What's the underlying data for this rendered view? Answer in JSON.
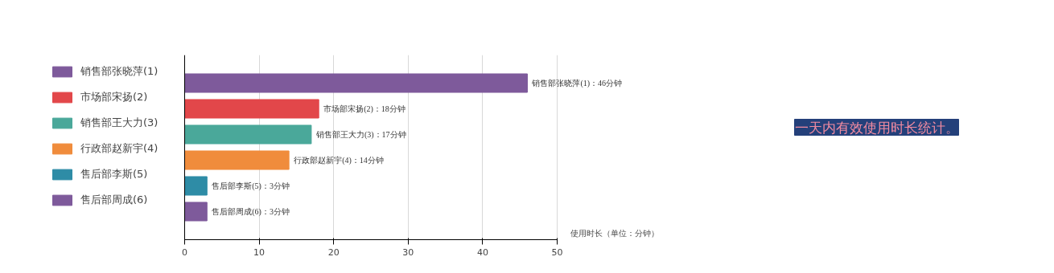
{
  "chart_data": {
    "type": "bar",
    "orientation": "horizontal",
    "title": "一天内有效使用时长统计。",
    "xlabel": "使用时长（单位：分钟）",
    "categories": [
      null,
      null,
      null,
      null,
      null,
      null
    ],
    "series": [
      {
        "name": "销售部张晓萍(1)",
        "color": "#7e5a9b",
        "values": [
          46,
          null,
          null,
          null,
          null,
          null
        ],
        "value_labels": [
          "销售部张晓萍(1)：46分钟",
          null,
          null,
          null,
          null,
          null
        ]
      },
      {
        "name": "市场部宋扬(2)",
        "color": "#e2474a",
        "values": [
          null,
          18,
          null,
          null,
          null,
          null
        ],
        "value_labels": [
          null,
          "市场部宋扬(2)：18分钟",
          null,
          null,
          null,
          null
        ]
      },
      {
        "name": "销售部王大力(3)",
        "color": "#4aa89a",
        "values": [
          null,
          null,
          17,
          null,
          null,
          null
        ],
        "value_labels": [
          null,
          null,
          "销售部王大力(3)：17分钟",
          null,
          null,
          null
        ]
      },
      {
        "name": "行政部赵新宇(4)",
        "color": "#f08c3c",
        "values": [
          null,
          null,
          null,
          14,
          null,
          null
        ],
        "value_labels": [
          null,
          null,
          null,
          "行政部赵新宇(4)：14分钟",
          null,
          null
        ]
      },
      {
        "name": "售后部李斯(5)",
        "color": "#2e8ca6",
        "values": [
          null,
          null,
          null,
          null,
          3,
          null
        ],
        "value_labels": [
          null,
          null,
          null,
          null,
          "售后部李斯(5)：3分钟",
          null
        ]
      },
      {
        "name": "售后部周成(6)",
        "color": "#7e5a9b",
        "values": [
          null,
          null,
          null,
          null,
          null,
          3
        ],
        "value_labels": [
          null,
          null,
          null,
          null,
          null,
          "售后部周成(6)：3分钟"
        ]
      }
    ],
    "xlim": [
      0,
      50
    ],
    "xticks": [
      0,
      10,
      20,
      30,
      40,
      50
    ],
    "grid": "x",
    "legend": "left",
    "tick_labels": "x"
  }
}
